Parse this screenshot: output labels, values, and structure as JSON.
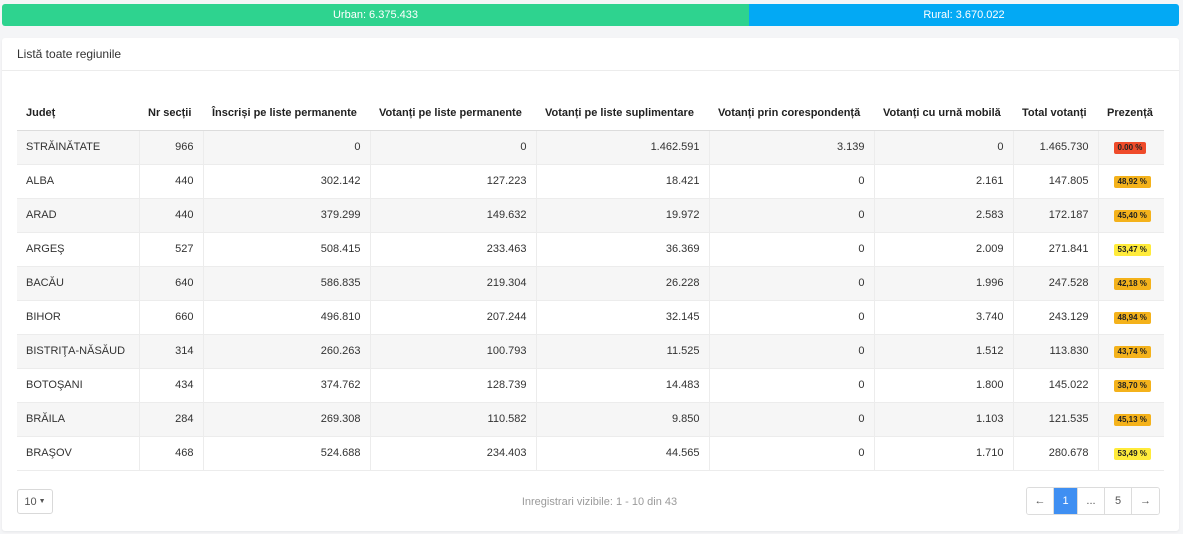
{
  "summary_bar": {
    "urban": {
      "label": "Urban: 6.375.433",
      "value": 6375433,
      "color": "#2ed38f"
    },
    "rural": {
      "label": "Rural: 3.670.022",
      "value": 3670022,
      "color": "#03a9f4"
    }
  },
  "panel": {
    "title": "Listă toate regiunile"
  },
  "table": {
    "headers": [
      "Județ",
      "Nr secții",
      "Înscriși pe liste permanente",
      "Votanți pe liste permanente",
      "Votanți pe liste suplimentare",
      "Votanți prin corespondență",
      "Votanți cu urnă mobilă",
      "Total votanți",
      "Prezență"
    ],
    "rows": [
      {
        "judet": "STRĂINĂTATE",
        "sectii": "966",
        "inscrisi": "0",
        "permanente": "0",
        "suplimentare": "1.462.591",
        "corespondenta": "3.139",
        "mobila": "0",
        "total": "1.465.730",
        "prezenta": "0.00 %"
      },
      {
        "judet": "ALBA",
        "sectii": "440",
        "inscrisi": "302.142",
        "permanente": "127.223",
        "suplimentare": "18.421",
        "corespondenta": "0",
        "mobila": "2.161",
        "total": "147.805",
        "prezenta": "48,92 %"
      },
      {
        "judet": "ARAD",
        "sectii": "440",
        "inscrisi": "379.299",
        "permanente": "149.632",
        "suplimentare": "19.972",
        "corespondenta": "0",
        "mobila": "2.583",
        "total": "172.187",
        "prezenta": "45,40 %"
      },
      {
        "judet": "ARGEŞ",
        "sectii": "527",
        "inscrisi": "508.415",
        "permanente": "233.463",
        "suplimentare": "36.369",
        "corespondenta": "0",
        "mobila": "2.009",
        "total": "271.841",
        "prezenta": "53,47 %"
      },
      {
        "judet": "BACĂU",
        "sectii": "640",
        "inscrisi": "586.835",
        "permanente": "219.304",
        "suplimentare": "26.228",
        "corespondenta": "0",
        "mobila": "1.996",
        "total": "247.528",
        "prezenta": "42,18 %"
      },
      {
        "judet": "BIHOR",
        "sectii": "660",
        "inscrisi": "496.810",
        "permanente": "207.244",
        "suplimentare": "32.145",
        "corespondenta": "0",
        "mobila": "3.740",
        "total": "243.129",
        "prezenta": "48,94 %"
      },
      {
        "judet": "BISTRIŢA-NĂSĂUD",
        "sectii": "314",
        "inscrisi": "260.263",
        "permanente": "100.793",
        "suplimentare": "11.525",
        "corespondenta": "0",
        "mobila": "1.512",
        "total": "113.830",
        "prezenta": "43,74 %"
      },
      {
        "judet": "BOTOŞANI",
        "sectii": "434",
        "inscrisi": "374.762",
        "permanente": "128.739",
        "suplimentare": "14.483",
        "corespondenta": "0",
        "mobila": "1.800",
        "total": "145.022",
        "prezenta": "38,70 %"
      },
      {
        "judet": "BRĂILA",
        "sectii": "284",
        "inscrisi": "269.308",
        "permanente": "110.582",
        "suplimentare": "9.850",
        "corespondenta": "0",
        "mobila": "1.103",
        "total": "121.535",
        "prezenta": "45,13 %"
      },
      {
        "judet": "BRAŞOV",
        "sectii": "468",
        "inscrisi": "524.688",
        "permanente": "234.403",
        "suplimentare": "44.565",
        "corespondenta": "0",
        "mobila": "1.710",
        "total": "280.678",
        "prezenta": "53,49 %"
      }
    ],
    "badge_colors": {
      "low": "#ef4b2a",
      "mid": "#f4b21b",
      "high": "#ffeb3b"
    }
  },
  "footer": {
    "page_size": "10",
    "info": "Inregistrari vizibile: 1 - 10 din 43",
    "pagination": {
      "prev": "←",
      "current": "1",
      "ellipsis": "...",
      "last": "5",
      "next": "→"
    }
  }
}
